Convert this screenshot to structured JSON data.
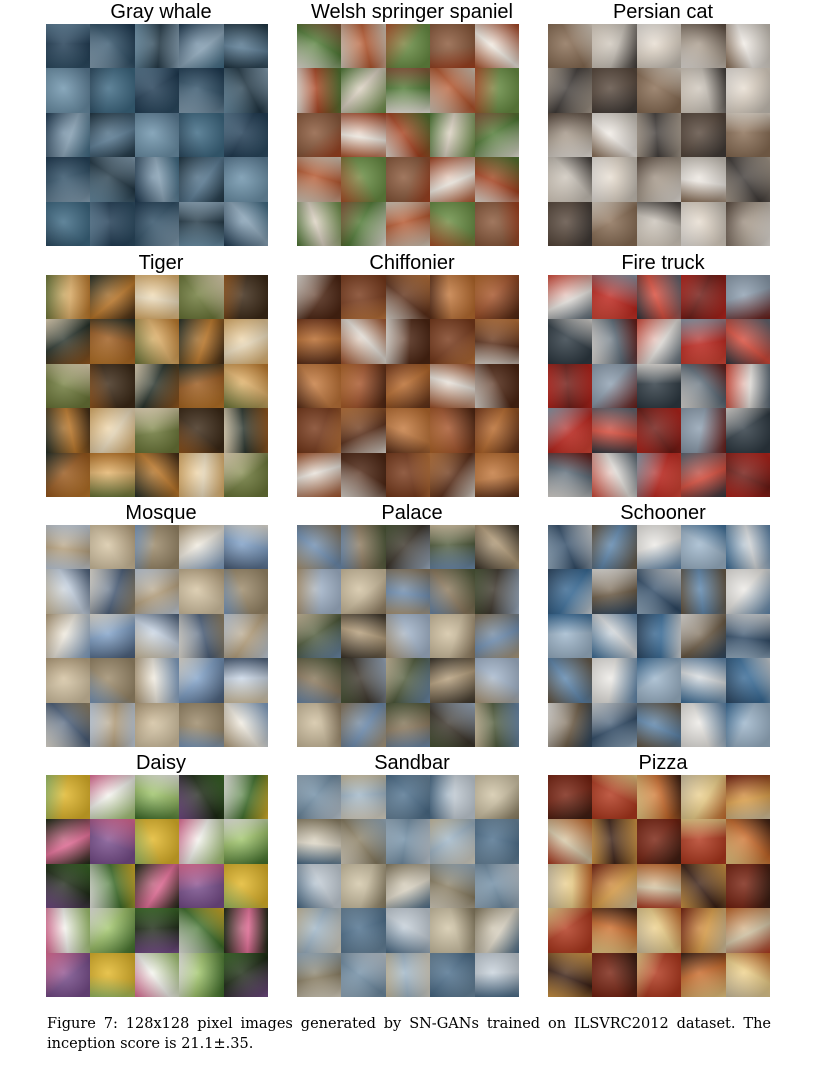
{
  "figure": {
    "panels": [
      {
        "title": "Gray whale",
        "palette": [
          "#2f4f66",
          "#5b7d96",
          "#1e3a52",
          "#8ea9bd",
          "#3e6a84",
          "#203644",
          "#6f95ad"
        ]
      },
      {
        "title": "Welsh springer spaniel",
        "palette": [
          "#b4552c",
          "#f2ece3",
          "#4f7a34",
          "#8c5a3c",
          "#dcd2c2",
          "#6a8f44",
          "#a7421f"
        ]
      },
      {
        "title": "Persian cat",
        "palette": [
          "#c9c2b8",
          "#f1ece6",
          "#8a6e55",
          "#b2a596",
          "#5a4a3e",
          "#e4d9cb",
          "#3f3a37"
        ]
      },
      {
        "title": "Tiger",
        "palette": [
          "#c07a2a",
          "#3d2a17",
          "#e3b36b",
          "#6e7a3a",
          "#9b5a1e",
          "#f0e0c0",
          "#27322a"
        ]
      },
      {
        "title": "Chiffonier",
        "palette": [
          "#7a3b1c",
          "#a4532a",
          "#4e2613",
          "#c47a3f",
          "#e8e2da",
          "#5c2f19",
          "#b86a2c"
        ]
      },
      {
        "title": "Fire truck",
        "palette": [
          "#c0261d",
          "#8e9fb0",
          "#e8e4df",
          "#6d1b15",
          "#5b6a77",
          "#d94b3a",
          "#2f3b44"
        ]
      },
      {
        "title": "Mosque",
        "palette": [
          "#d8c7a6",
          "#7fa0c7",
          "#b8a27e",
          "#f0ebe0",
          "#4b5f7a",
          "#9c8a6a",
          "#c9d6e6"
        ]
      },
      {
        "title": "Palace",
        "palette": [
          "#8d7a5e",
          "#b59e7b",
          "#6f8fb3",
          "#4e5a3a",
          "#d2c2a2",
          "#3b342a",
          "#a7b9cf"
        ]
      },
      {
        "title": "Schooner",
        "palette": [
          "#5d86ad",
          "#d9dde0",
          "#2f4a66",
          "#9fb7cc",
          "#6b5a44",
          "#eceae6",
          "#3b6f9c"
        ]
      },
      {
        "title": "Daisy",
        "palette": [
          "#f4f4ee",
          "#3e6f2a",
          "#e2b72a",
          "#1c2a14",
          "#7a4f8e",
          "#9fc46a",
          "#e96f9a"
        ]
      },
      {
        "title": "Sandbar",
        "palette": [
          "#9fb6c8",
          "#d2c6a8",
          "#6f8ca3",
          "#c9d3dc",
          "#8a7e62",
          "#4d6f8c",
          "#e3dccb"
        ]
      },
      {
        "title": "Pizza",
        "palette": [
          "#b2391e",
          "#e0a24a",
          "#7a2412",
          "#f0d28a",
          "#3a1f14",
          "#c96a2a",
          "#d8c9a8"
        ]
      }
    ]
  },
  "caption": "Figure 7:  128x128 pixel images generated by SN-GANs trained on ILSVRC2012 dataset.  The inception score is 21.1±.35."
}
